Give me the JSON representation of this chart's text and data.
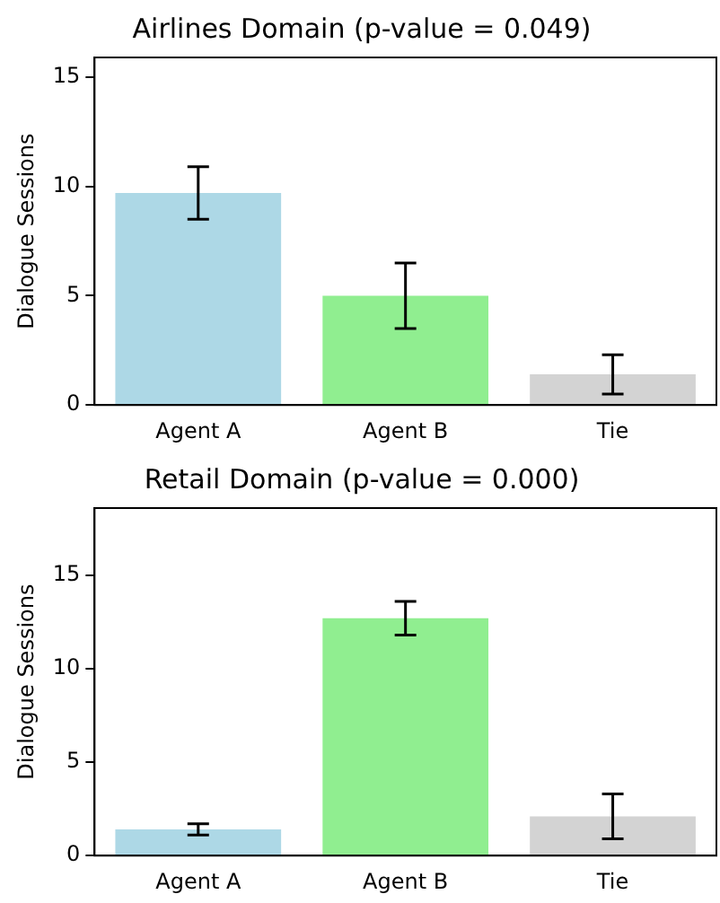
{
  "chart_data": [
    {
      "type": "bar",
      "title": "Airlines Domain (p-value = 0.049)",
      "ylabel": "Dialogue Sessions",
      "categories": [
        "Agent A",
        "Agent B",
        "Tie"
      ],
      "values": [
        9.7,
        5.0,
        1.4
      ],
      "colors": [
        "#add8e6",
        "#90ee90",
        "#d3d3d3"
      ],
      "errors": [
        1.2,
        1.5,
        0.9
      ],
      "ylim": [
        0,
        15.9
      ],
      "yticks": [
        0,
        5,
        10,
        15
      ],
      "grid": false,
      "legend": false
    },
    {
      "type": "bar",
      "title": "Retail Domain (p-value = 0.000)",
      "ylabel": "Dialogue Sessions",
      "categories": [
        "Agent A",
        "Agent B",
        "Tie"
      ],
      "values": [
        1.4,
        12.7,
        2.1
      ],
      "colors": [
        "#add8e6",
        "#90ee90",
        "#d3d3d3"
      ],
      "errors": [
        0.3,
        0.9,
        1.2
      ],
      "ylim": [
        0,
        18.6
      ],
      "yticks": [
        0,
        5,
        10,
        15
      ],
      "grid": false,
      "legend": false
    }
  ]
}
